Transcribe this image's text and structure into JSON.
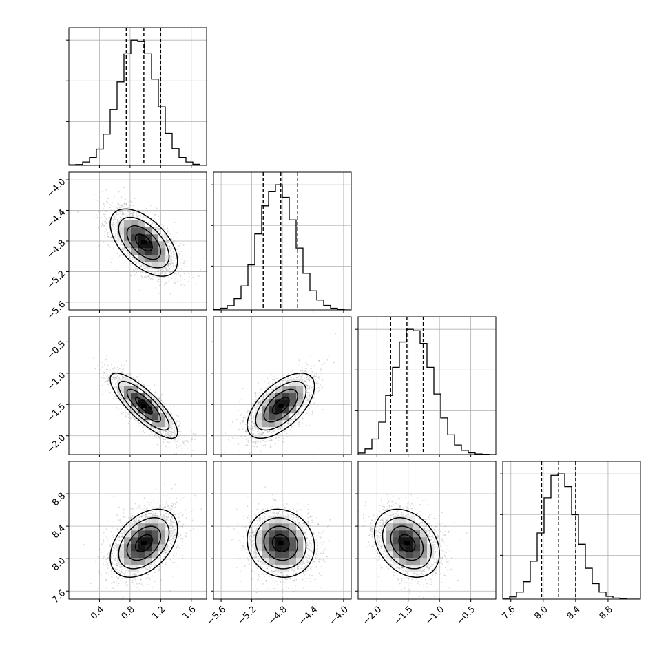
{
  "chart_data": {
    "type": "corner",
    "parameters": 4,
    "grid": true,
    "colors": {
      "ink": "#000000",
      "samples": "#8c8c8c",
      "grid": "#b0b0b0"
    },
    "axes": [
      {
        "range": [
          0.0,
          1.8
        ],
        "ticks": [
          0.4,
          0.8,
          1.2,
          1.6
        ],
        "tick_labels": [
          "0.4",
          "0.8",
          "1.2",
          "1.6"
        ],
        "quantiles": [
          0.75,
          0.98,
          1.2
        ],
        "median": 0.98,
        "sigma": 0.22
      },
      {
        "range": [
          -5.7,
          -3.9
        ],
        "ticks": [
          -5.6,
          -5.2,
          -4.8,
          -4.4,
          -4.0
        ],
        "tick_labels": [
          "−5.6",
          "−5.2",
          "−4.8",
          "−4.4",
          "−4.0"
        ],
        "quantiles": [
          -5.05,
          -4.82,
          -4.6
        ],
        "median": -4.82,
        "sigma": 0.22
      },
      {
        "range": [
          -2.3,
          -0.1
        ],
        "ticks": [
          -2.0,
          -1.5,
          -1.0,
          -0.5
        ],
        "tick_labels": [
          "−2.0",
          "−1.5",
          "−1.0",
          "−0.5"
        ],
        "quantiles": [
          -1.78,
          -1.52,
          -1.26
        ],
        "median": -1.52,
        "sigma": 0.26
      },
      {
        "range": [
          7.5,
          9.2
        ],
        "ticks": [
          7.6,
          8.0,
          8.4,
          8.8
        ],
        "tick_labels": [
          "7.6",
          "8.0",
          "8.4",
          "8.8"
        ],
        "quantiles": [
          7.98,
          8.19,
          8.4
        ],
        "median": 8.19,
        "sigma": 0.21
      }
    ],
    "correlations": [
      {
        "row": 1,
        "col": 0,
        "rho": -0.55
      },
      {
        "row": 2,
        "col": 0,
        "rho": -0.82
      },
      {
        "row": 2,
        "col": 1,
        "rho": 0.6
      },
      {
        "row": 3,
        "col": 0,
        "rho": 0.42
      },
      {
        "row": 3,
        "col": 1,
        "rho": -0.1
      },
      {
        "row": 3,
        "col": 2,
        "rho": -0.3
      }
    ],
    "histograms": [
      {
        "param": 0,
        "bin_edges": [
          0.0,
          0.09,
          0.18,
          0.27,
          0.36,
          0.45,
          0.54,
          0.63,
          0.72,
          0.81,
          0.9,
          0.99,
          1.08,
          1.17,
          1.26,
          1.35,
          1.44,
          1.53,
          1.62,
          1.71,
          1.8
        ],
        "counts": [
          2,
          3,
          12,
          28,
          58,
          112,
          200,
          300,
          400,
          450,
          445,
          400,
          310,
          210,
          115,
          60,
          28,
          12,
          4,
          1
        ]
      },
      {
        "param": 1,
        "bin_edges": [
          -5.7,
          -5.61,
          -5.52,
          -5.43,
          -5.34,
          -5.25,
          -5.16,
          -5.07,
          -4.98,
          -4.89,
          -4.8,
          -4.71,
          -4.62,
          -4.53,
          -4.44,
          -4.35,
          -4.26,
          -4.17,
          -4.08,
          -3.99,
          -3.9
        ],
        "counts": [
          2,
          6,
          15,
          40,
          85,
          160,
          270,
          370,
          420,
          445,
          400,
          320,
          220,
          130,
          68,
          35,
          16,
          6,
          2,
          0
        ]
      },
      {
        "param": 2,
        "bin_edges": [
          -2.3,
          -2.19,
          -2.08,
          -1.97,
          -1.86,
          -1.75,
          -1.64,
          -1.53,
          -1.42,
          -1.31,
          -1.2,
          -1.09,
          -0.98,
          -0.87,
          -0.76,
          -0.65,
          -0.54,
          -0.43,
          -0.32,
          -0.21,
          -0.1
        ],
        "counts": [
          5,
          20,
          55,
          115,
          210,
          310,
          400,
          445,
          440,
          395,
          310,
          215,
          130,
          70,
          34,
          15,
          6,
          2,
          1,
          0
        ]
      },
      {
        "param": 3,
        "bin_edges": [
          7.5,
          7.585,
          7.67,
          7.755,
          7.84,
          7.925,
          8.01,
          8.095,
          8.18,
          8.265,
          8.35,
          8.435,
          8.52,
          8.605,
          8.69,
          8.775,
          8.86,
          8.945,
          9.03,
          9.115,
          9.2
        ],
        "counts": [
          3,
          8,
          25,
          62,
          135,
          235,
          360,
          440,
          445,
          400,
          300,
          195,
          110,
          55,
          25,
          10,
          4,
          1,
          0,
          0
        ]
      }
    ],
    "contour_levels_sigma": [
      0.5,
      1.0,
      1.5,
      2.0
    ]
  }
}
